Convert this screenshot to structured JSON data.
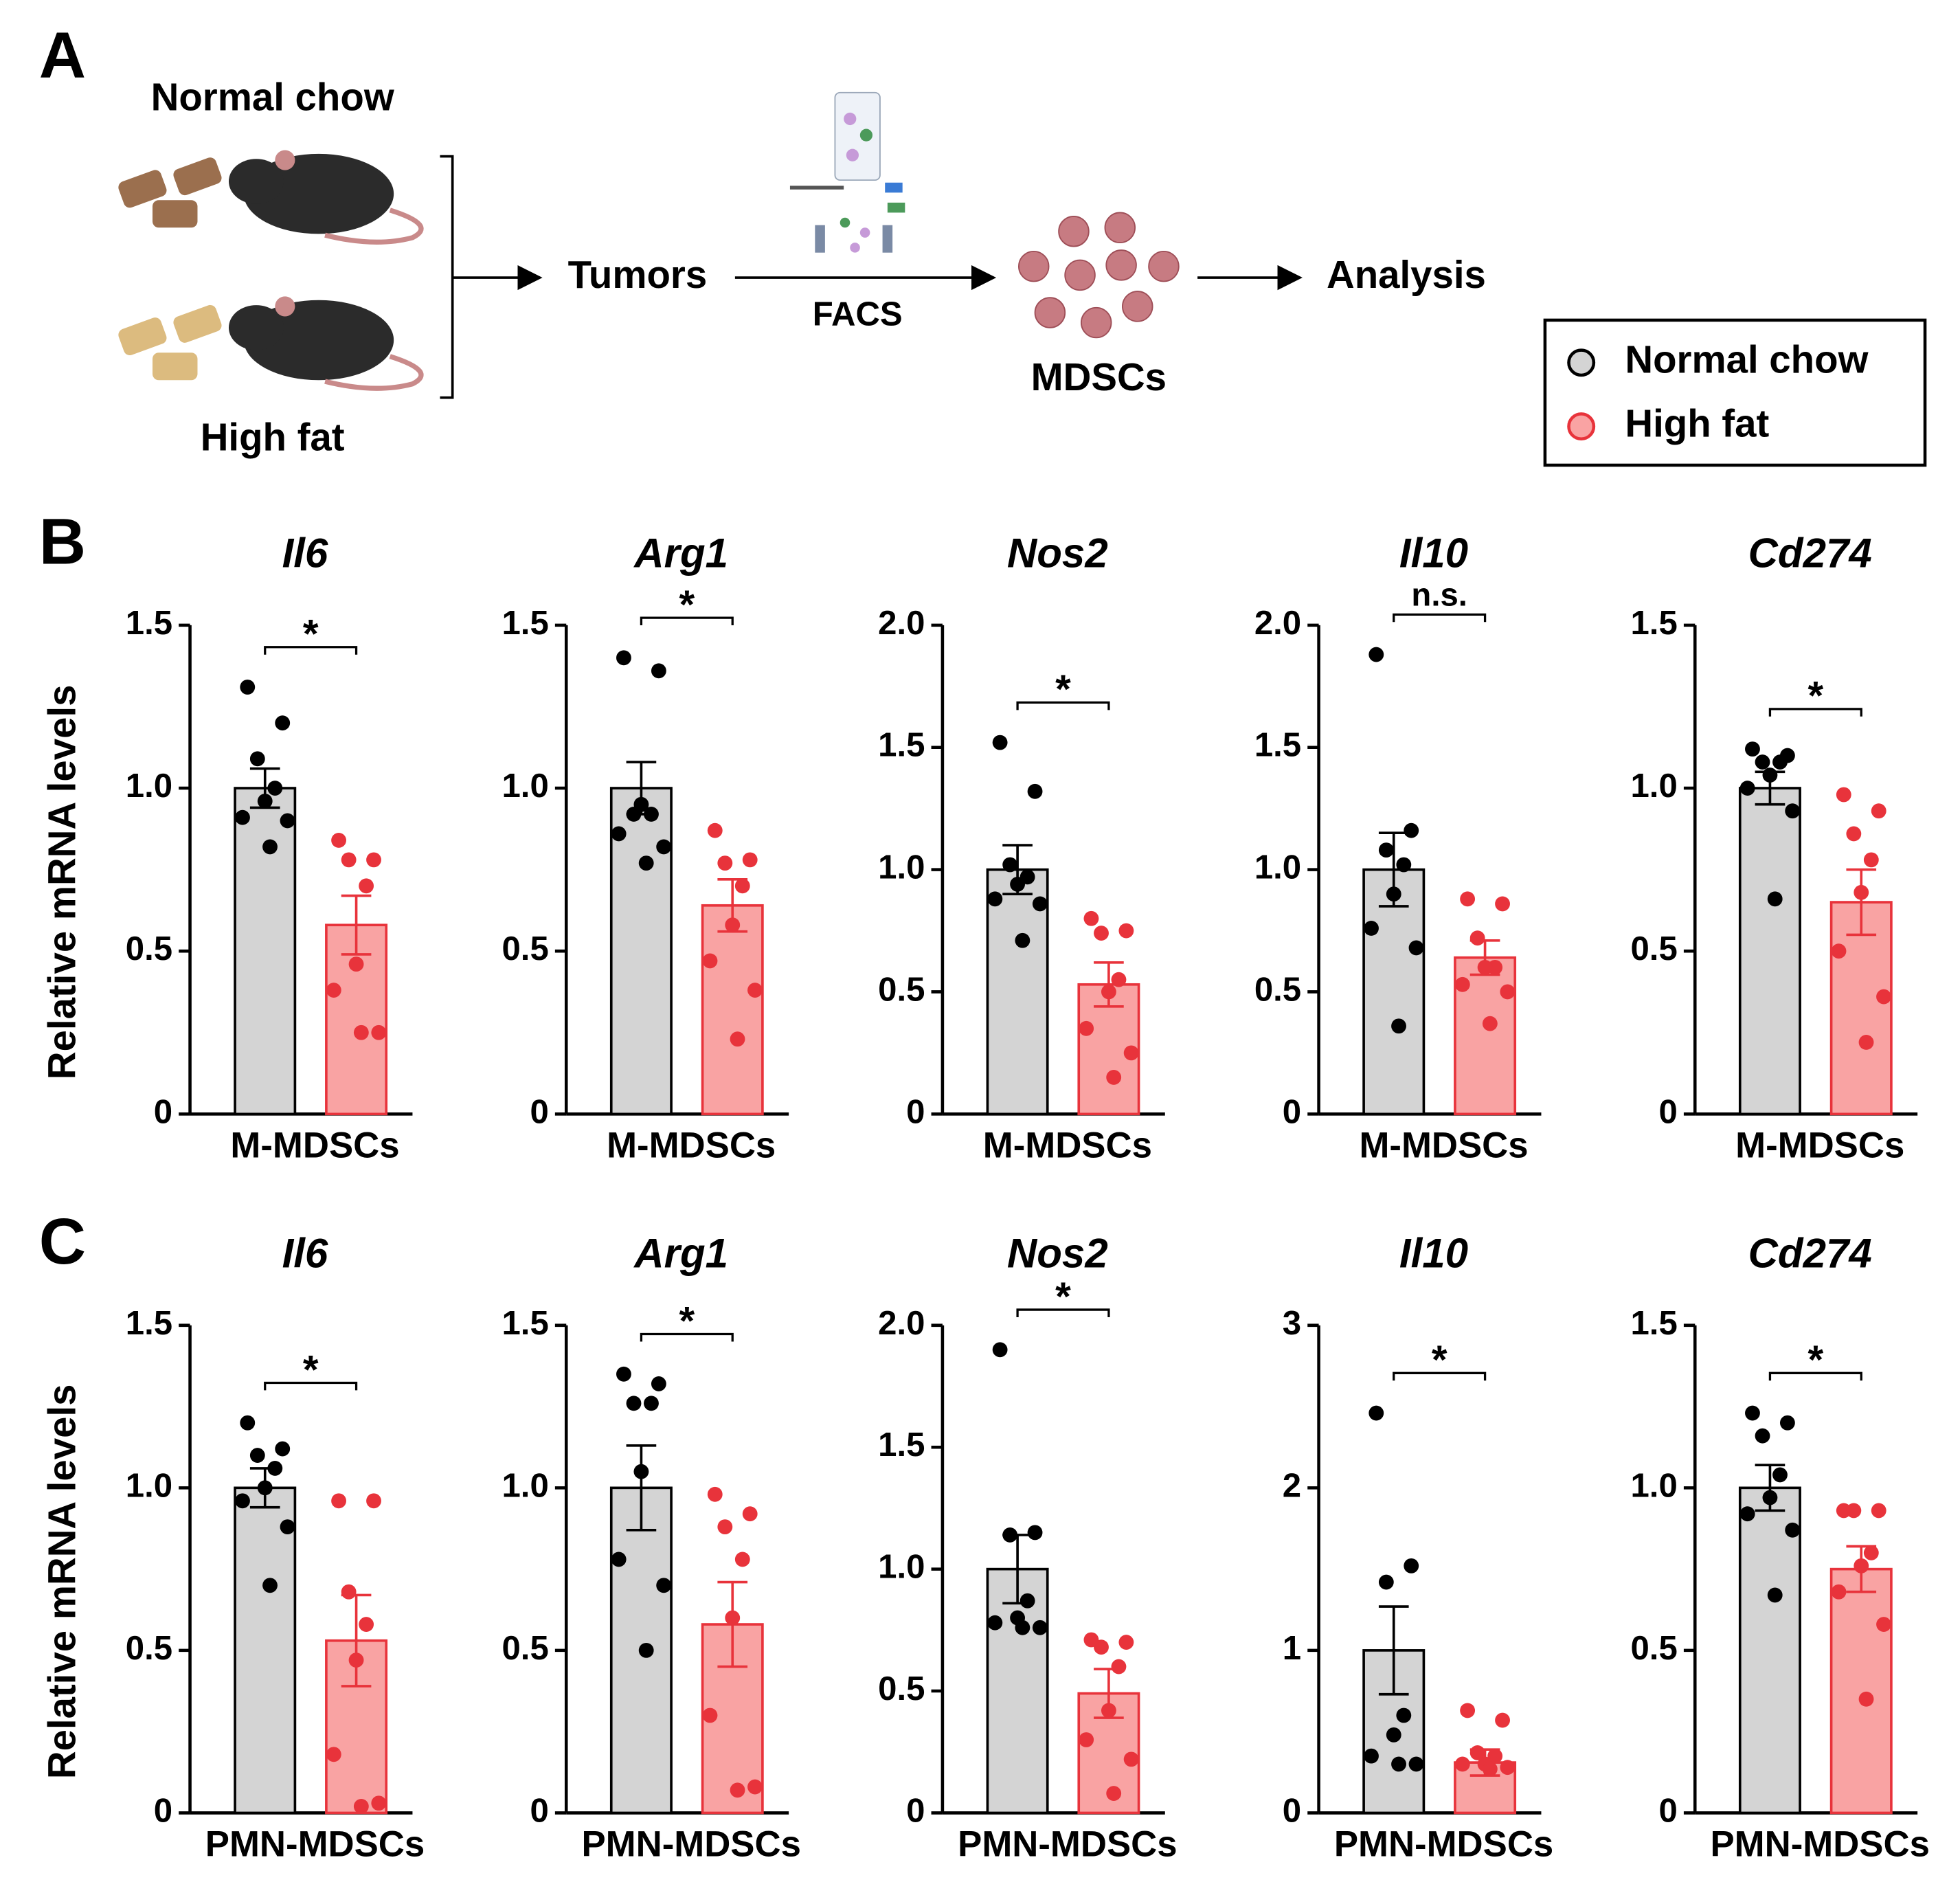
{
  "panels": [
    "A",
    "B",
    "C"
  ],
  "diagram": {
    "top_label": "Normal chow",
    "bottom_label": "High fat",
    "step1": "Tumors",
    "method": "FACS",
    "step2": "MDSCs",
    "step3": "Analysis"
  },
  "legend": [
    {
      "name": "Normal chow",
      "fill": "#d4d4d4",
      "edge": "#000000",
      "point": "#000000"
    },
    {
      "name": "High fat",
      "fill": "#f9a3a3",
      "edge": "#e8333b",
      "point": "#e8333b"
    }
  ],
  "chart_data": [
    {
      "type": "bar",
      "title": "Il6",
      "xlabel": "M-MDSCs",
      "ylabel": "Relative mRNA levels",
      "ylim": [
        0,
        1.5
      ],
      "yticks": [
        0,
        0.5,
        {
          "value": 1,
          "label": "1.0"
        },
        1.5
      ],
      "significance": "*",
      "groups": [
        {
          "mean": 1.0,
          "sem": 0.06,
          "points": [
            1.31,
            1.2,
            1.09,
            1.0,
            0.96,
            0.91,
            0.9,
            0.82
          ]
        },
        {
          "mean": 0.58,
          "sem": 0.09,
          "points": [
            0.84,
            0.78,
            0.78,
            0.7,
            0.46,
            0.38,
            0.25,
            0.25
          ]
        }
      ]
    },
    {
      "type": "bar",
      "title": "Arg1",
      "xlabel": "M-MDSCs",
      "ylim": [
        0,
        1.5
      ],
      "yticks": [
        0,
        0.5,
        {
          "value": 1,
          "label": "1.0"
        },
        1.5
      ],
      "significance": "*",
      "groups": [
        {
          "mean": 1.0,
          "sem": 0.08,
          "points": [
            1.4,
            1.36,
            0.92,
            0.92,
            0.95,
            0.86,
            0.82,
            0.77
          ]
        },
        {
          "mean": 0.64,
          "sem": 0.08,
          "points": [
            0.87,
            0.78,
            0.77,
            0.7,
            0.58,
            0.47,
            0.38,
            0.23
          ]
        }
      ]
    },
    {
      "type": "bar",
      "title": "Nos2",
      "xlabel": "M-MDSCs",
      "ylim": [
        0,
        2
      ],
      "yticks": [
        0,
        0.5,
        {
          "value": 1,
          "label": "1.0"
        },
        1.5,
        {
          "value": 2,
          "label": "2.0"
        }
      ],
      "significance": "*",
      "groups": [
        {
          "mean": 1.0,
          "sem": 0.1,
          "points": [
            1.52,
            1.32,
            1.02,
            0.97,
            0.94,
            0.88,
            0.86,
            0.71
          ]
        },
        {
          "mean": 0.53,
          "sem": 0.09,
          "points": [
            0.8,
            0.75,
            0.74,
            0.55,
            0.5,
            0.35,
            0.25,
            0.15
          ]
        }
      ]
    },
    {
      "type": "bar",
      "title": "Il10",
      "xlabel": "M-MDSCs",
      "ylim": [
        0,
        2
      ],
      "yticks": [
        0,
        0.5,
        {
          "value": 1,
          "label": "1.0"
        },
        1.5,
        {
          "value": 2,
          "label": "2.0"
        }
      ],
      "significance": "n.s.",
      "groups": [
        {
          "mean": 1.0,
          "sem": 0.15,
          "points": [
            1.88,
            1.16,
            1.08,
            1.02,
            0.9,
            0.76,
            0.68,
            0.36
          ]
        },
        {
          "mean": 0.64,
          "sem": 0.07,
          "points": [
            0.88,
            0.86,
            0.72,
            0.6,
            0.6,
            0.53,
            0.5,
            0.37
          ]
        }
      ]
    },
    {
      "type": "bar",
      "title": "Cd274",
      "xlabel": "M-MDSCs",
      "ylim": [
        0,
        1.5
      ],
      "yticks": [
        0,
        0.5,
        {
          "value": 1,
          "label": "1.0"
        },
        1.5
      ],
      "significance": "*",
      "groups": [
        {
          "mean": 1.0,
          "sem": 0.05,
          "points": [
            1.12,
            1.1,
            1.08,
            1.08,
            1.04,
            1.0,
            0.93,
            0.66
          ]
        },
        {
          "mean": 0.65,
          "sem": 0.1,
          "points": [
            0.98,
            0.93,
            0.86,
            0.78,
            0.68,
            0.5,
            0.36,
            0.22
          ]
        }
      ]
    },
    {
      "type": "bar",
      "title": "Il6",
      "xlabel": "PMN-MDSCs",
      "ylabel": "Relative mRNA levels",
      "ylim": [
        0,
        1.5
      ],
      "yticks": [
        0,
        0.5,
        {
          "value": 1,
          "label": "1.0"
        },
        1.5
      ],
      "significance": "*",
      "groups": [
        {
          "mean": 1.0,
          "sem": 0.06,
          "points": [
            1.2,
            1.12,
            1.1,
            1.06,
            1.0,
            0.96,
            0.88,
            0.7
          ]
        },
        {
          "mean": 0.53,
          "sem": 0.14,
          "points": [
            0.96,
            0.96,
            0.68,
            0.58,
            0.47,
            0.18,
            0.03,
            0.02
          ]
        }
      ]
    },
    {
      "type": "bar",
      "title": "Arg1",
      "xlabel": "PMN-MDSCs",
      "ylim": [
        0,
        1.5
      ],
      "yticks": [
        0,
        0.5,
        {
          "value": 1,
          "label": "1.0"
        },
        1.5
      ],
      "significance": "*",
      "groups": [
        {
          "mean": 1.0,
          "sem": 0.13,
          "points": [
            1.35,
            1.32,
            1.26,
            1.26,
            1.05,
            0.78,
            0.7,
            0.5
          ]
        },
        {
          "mean": 0.58,
          "sem": 0.13,
          "points": [
            0.98,
            0.92,
            0.88,
            0.78,
            0.6,
            0.3,
            0.08,
            0.07
          ]
        }
      ]
    },
    {
      "type": "bar",
      "title": "Nos2",
      "xlabel": "PMN-MDSCs",
      "ylim": [
        0,
        2
      ],
      "yticks": [
        0,
        0.5,
        {
          "value": 1,
          "label": "1.0"
        },
        1.5,
        {
          "value": 2,
          "label": "2.0"
        }
      ],
      "significance": "*",
      "groups": [
        {
          "mean": 1.0,
          "sem": 0.14,
          "points": [
            1.9,
            1.15,
            1.14,
            0.87,
            0.8,
            0.78,
            0.76,
            0.76
          ]
        },
        {
          "mean": 0.49,
          "sem": 0.1,
          "points": [
            0.71,
            0.7,
            0.68,
            0.6,
            0.42,
            0.3,
            0.22,
            0.08
          ]
        }
      ]
    },
    {
      "type": "bar",
      "title": "Il10",
      "xlabel": "PMN-MDSCs",
      "ylim": [
        0,
        3
      ],
      "yticks": [
        0,
        1,
        2,
        3
      ],
      "significance": "*",
      "groups": [
        {
          "mean": 1.0,
          "sem": 0.27,
          "points": [
            2.46,
            1.52,
            1.42,
            0.6,
            0.48,
            0.35,
            0.3,
            0.3
          ]
        },
        {
          "mean": 0.31,
          "sem": 0.08,
          "points": [
            0.63,
            0.57,
            0.37,
            0.35,
            0.3,
            0.3,
            0.28,
            0.27
          ]
        }
      ]
    },
    {
      "type": "bar",
      "title": "Cd274",
      "xlabel": "PMN-MDSCs",
      "ylim": [
        0,
        1.5
      ],
      "yticks": [
        0,
        0.5,
        {
          "value": 1,
          "label": "1.0"
        },
        1.5
      ],
      "significance": "*",
      "groups": [
        {
          "mean": 1.0,
          "sem": 0.07,
          "points": [
            1.23,
            1.2,
            1.16,
            1.04,
            0.97,
            0.92,
            0.87,
            0.67
          ]
        },
        {
          "mean": 0.75,
          "sem": 0.07,
          "points": [
            0.93,
            0.93,
            0.93,
            0.8,
            0.76,
            0.68,
            0.58,
            0.35
          ]
        }
      ]
    }
  ]
}
